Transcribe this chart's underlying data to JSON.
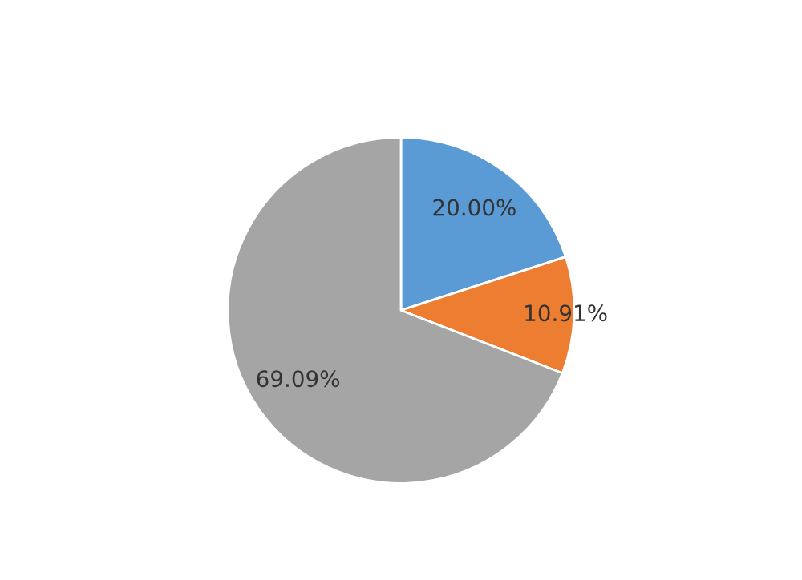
{
  "chart_data": {
    "type": "pie",
    "categories": [
      null,
      null,
      null
    ],
    "values": [
      20.0,
      10.91,
      69.09
    ],
    "colors": [
      "#5b9bd5",
      "#ed7d31",
      "#a5a5a5"
    ],
    "value_labels": [
      "20.00%",
      "10.91%",
      "69.09%"
    ]
  }
}
